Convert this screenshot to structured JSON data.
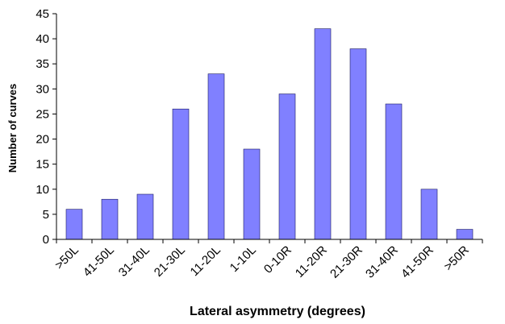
{
  "chart_data": {
    "type": "bar",
    "xlabel": "Lateral asymmetry (degrees)",
    "ylabel": "Number of curves",
    "categories": [
      ">50L",
      "41-50L",
      "31-40L",
      "21-30L",
      "11-20L",
      "1-10L",
      "0-10R",
      "11-20R",
      "21-30R",
      "31-40R",
      "41-50R",
      ">50R"
    ],
    "values": [
      6,
      8,
      9,
      26,
      33,
      18,
      29,
      42,
      38,
      27,
      10,
      2
    ],
    "ylim": [
      0,
      45
    ],
    "yticks": [
      0,
      5,
      10,
      15,
      20,
      25,
      30,
      35,
      40,
      45
    ],
    "grid": false,
    "legend": "none",
    "colors": {
      "bar_fill": "#8080ff",
      "bar_stroke": "#1a1a60",
      "axis": "#000000"
    }
  }
}
